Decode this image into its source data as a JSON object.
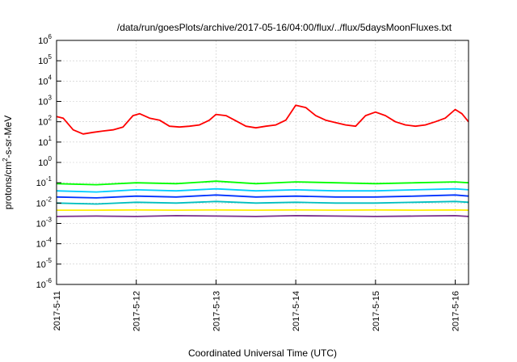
{
  "chart_data": {
    "type": "line",
    "title": "/data/run/goesPlots/archive/2017-05-16/04:00/flux/../flux/5daysMoonFluxes.txt",
    "xlabel": "Coordinated Universal Time (UTC)",
    "ylabel_parts": [
      "protons/cm",
      "2",
      "-s-sr-MeV"
    ],
    "ylabel": "protons/cm2-s-sr-MeV",
    "yscale": "log",
    "ylim": [
      1e-06,
      1000000.0
    ],
    "y_ticks": [
      {
        "base": "10",
        "exp": "6"
      },
      {
        "base": "10",
        "exp": "5"
      },
      {
        "base": "10",
        "exp": "4"
      },
      {
        "base": "10",
        "exp": "3"
      },
      {
        "base": "10",
        "exp": "2"
      },
      {
        "base": "10",
        "exp": "1"
      },
      {
        "base": "10",
        "exp": "0"
      },
      {
        "base": "10",
        "exp": "-1"
      },
      {
        "base": "10",
        "exp": "-2"
      },
      {
        "base": "10",
        "exp": "-3"
      },
      {
        "base": "10",
        "exp": "-4"
      },
      {
        "base": "10",
        "exp": "-5"
      },
      {
        "base": "10",
        "exp": "-6"
      }
    ],
    "x_range": [
      "2017-05-11 00:00",
      "2017-05-16 04:00"
    ],
    "x_ticks": [
      "2017-5-11",
      "2017-5-12",
      "2017-5-13",
      "2017-5-14",
      "2017-5-15",
      "2017-5-16"
    ],
    "grid": true,
    "legend": "none",
    "series": [
      {
        "color": "#ff0000",
        "x": [
          "2017-05-11 00:00",
          "2017-05-11 02:00",
          "2017-05-11 05:00",
          "2017-05-11 08:00",
          "2017-05-11 11:00",
          "2017-05-11 14:00",
          "2017-05-11 17:00",
          "2017-05-11 20:00",
          "2017-05-11 23:00",
          "2017-05-12 01:00",
          "2017-05-12 04:00",
          "2017-05-12 07:00",
          "2017-05-12 10:00",
          "2017-05-12 13:00",
          "2017-05-12 16:00",
          "2017-05-12 19:00",
          "2017-05-12 22:00",
          "2017-05-13 00:00",
          "2017-05-13 03:00",
          "2017-05-13 06:00",
          "2017-05-13 09:00",
          "2017-05-13 12:00",
          "2017-05-13 15:00",
          "2017-05-13 18:00",
          "2017-05-13 21:00",
          "2017-05-14 00:00",
          "2017-05-14 03:00",
          "2017-05-14 06:00",
          "2017-05-14 09:00",
          "2017-05-14 12:00",
          "2017-05-14 15:00",
          "2017-05-14 18:00",
          "2017-05-14 21:00",
          "2017-05-15 00:00",
          "2017-05-15 03:00",
          "2017-05-15 06:00",
          "2017-05-15 09:00",
          "2017-05-15 12:00",
          "2017-05-15 15:00",
          "2017-05-15 18:00",
          "2017-05-15 21:00",
          "2017-05-16 00:00",
          "2017-05-16 02:00",
          "2017-05-16 04:00"
        ],
        "y": [
          180,
          150,
          40,
          25,
          30,
          35,
          40,
          55,
          200,
          250,
          150,
          120,
          60,
          55,
          60,
          70,
          120,
          230,
          200,
          110,
          60,
          50,
          60,
          70,
          120,
          650,
          500,
          200,
          120,
          90,
          70,
          60,
          200,
          300,
          200,
          100,
          70,
          60,
          70,
          100,
          150,
          400,
          250,
          100
        ]
      },
      {
        "color": "#00ff00",
        "x": [
          "2017-05-11 00:00",
          "2017-05-11 12:00",
          "2017-05-12 00:00",
          "2017-05-12 12:00",
          "2017-05-13 00:00",
          "2017-05-13 12:00",
          "2017-05-14 00:00",
          "2017-05-14 12:00",
          "2017-05-15 00:00",
          "2017-05-15 12:00",
          "2017-05-16 00:00",
          "2017-05-16 04:00"
        ],
        "y": [
          0.09,
          0.08,
          0.1,
          0.09,
          0.12,
          0.09,
          0.11,
          0.1,
          0.09,
          0.1,
          0.11,
          0.1
        ]
      },
      {
        "color": "#00ccff",
        "x": [
          "2017-05-11 00:00",
          "2017-05-11 12:00",
          "2017-05-12 00:00",
          "2017-05-12 12:00",
          "2017-05-13 00:00",
          "2017-05-13 12:00",
          "2017-05-14 00:00",
          "2017-05-14 12:00",
          "2017-05-15 00:00",
          "2017-05-15 12:00",
          "2017-05-16 00:00",
          "2017-05-16 04:00"
        ],
        "y": [
          0.04,
          0.035,
          0.045,
          0.04,
          0.05,
          0.04,
          0.045,
          0.04,
          0.04,
          0.045,
          0.05,
          0.045
        ]
      },
      {
        "color": "#0033ff",
        "x": [
          "2017-05-11 00:00",
          "2017-05-11 12:00",
          "2017-05-12 00:00",
          "2017-05-12 12:00",
          "2017-05-13 00:00",
          "2017-05-13 12:00",
          "2017-05-14 00:00",
          "2017-05-14 12:00",
          "2017-05-15 00:00",
          "2017-05-15 12:00",
          "2017-05-16 00:00",
          "2017-05-16 04:00"
        ],
        "y": [
          0.02,
          0.018,
          0.022,
          0.02,
          0.025,
          0.02,
          0.022,
          0.02,
          0.02,
          0.022,
          0.025,
          0.022
        ]
      },
      {
        "color": "#00bfbf",
        "x": [
          "2017-05-11 00:00",
          "2017-05-11 12:00",
          "2017-05-12 00:00",
          "2017-05-12 12:00",
          "2017-05-13 00:00",
          "2017-05-13 12:00",
          "2017-05-14 00:00",
          "2017-05-14 12:00",
          "2017-05-15 00:00",
          "2017-05-15 12:00",
          "2017-05-16 00:00",
          "2017-05-16 04:00"
        ],
        "y": [
          0.01,
          0.009,
          0.011,
          0.01,
          0.012,
          0.01,
          0.011,
          0.01,
          0.01,
          0.011,
          0.012,
          0.011
        ]
      },
      {
        "color": "#ffee00",
        "x": [
          "2017-05-11 00:00",
          "2017-05-11 12:00",
          "2017-05-12 00:00",
          "2017-05-12 12:00",
          "2017-05-13 00:00",
          "2017-05-13 12:00",
          "2017-05-14 00:00",
          "2017-05-14 12:00",
          "2017-05-15 00:00",
          "2017-05-15 12:00",
          "2017-05-16 00:00",
          "2017-05-16 04:00"
        ],
        "y": [
          0.0045,
          0.0045,
          0.0046,
          0.0045,
          0.0046,
          0.0045,
          0.0046,
          0.0045,
          0.0046,
          0.0045,
          0.0046,
          0.0045
        ]
      },
      {
        "color": "#7a2e8c",
        "x": [
          "2017-05-11 00:00",
          "2017-05-11 12:00",
          "2017-05-12 00:00",
          "2017-05-12 12:00",
          "2017-05-13 00:00",
          "2017-05-13 12:00",
          "2017-05-14 00:00",
          "2017-05-14 12:00",
          "2017-05-15 00:00",
          "2017-05-15 12:00",
          "2017-05-16 00:00",
          "2017-05-16 04:00"
        ],
        "y": [
          0.0022,
          0.0023,
          0.0022,
          0.0024,
          0.0023,
          0.0022,
          0.0024,
          0.0023,
          0.0022,
          0.0023,
          0.0024,
          0.0022
        ]
      }
    ]
  }
}
